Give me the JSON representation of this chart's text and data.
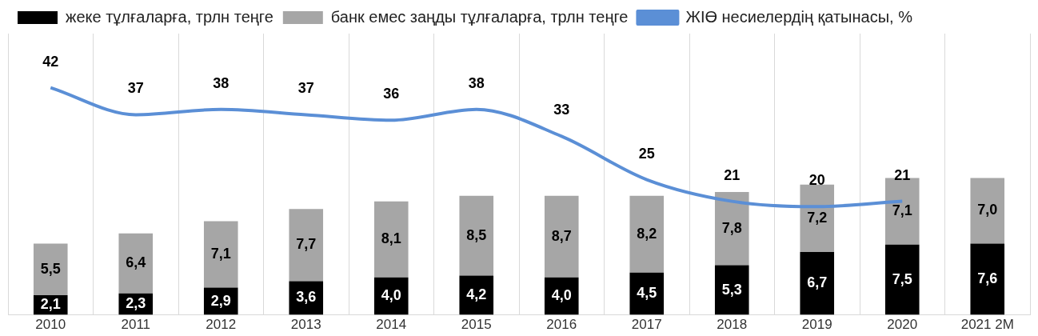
{
  "chart_data": {
    "type": "bar",
    "stacked": true,
    "categories": [
      "2010",
      "2011",
      "2012",
      "2013",
      "2014",
      "2015",
      "2016",
      "2017",
      "2018",
      "2019",
      "2020",
      "2021 2M"
    ],
    "series": [
      {
        "name": "жеке тұлғаларға, трлн теңге",
        "color": "#000000",
        "values": [
          2.1,
          2.3,
          2.9,
          3.6,
          4.0,
          4.2,
          4.0,
          4.5,
          5.3,
          6.7,
          7.5,
          7.6
        ],
        "value_labels": [
          "2,1",
          "2,3",
          "2,9",
          "3,6",
          "4,0",
          "4,2",
          "4,0",
          "4,5",
          "5,3",
          "6,7",
          "7,5",
          "7,6"
        ]
      },
      {
        "name": "банк емес заңды тұлғаларға, трлн теңге",
        "color": "#a6a6a6",
        "values": [
          5.5,
          6.4,
          7.1,
          7.7,
          8.1,
          8.5,
          8.7,
          8.2,
          7.8,
          7.2,
          7.1,
          7.0
        ],
        "value_labels": [
          "5,5",
          "6,4",
          "7,1",
          "7,7",
          "8,1",
          "8,5",
          "8,7",
          "8,2",
          "7,8",
          "7,2",
          "7,1",
          "7,0"
        ]
      },
      {
        "name": "ЖІӨ несиелердің қатынасы, %",
        "type": "line",
        "axis": "y2",
        "color": "#5b8fd6",
        "values": [
          42,
          37,
          38,
          37,
          36,
          38,
          33,
          25,
          21,
          20,
          21,
          null
        ],
        "value_labels": [
          "42",
          "37",
          "38",
          "37",
          "36",
          "38",
          "33",
          "25",
          "21",
          "20",
          "21",
          null
        ]
      }
    ],
    "ylim": [
      0,
      30
    ],
    "y2lim": [
      0,
      52
    ],
    "tick_labels": "x",
    "grid": "x",
    "legend": "top",
    "marker": "none"
  }
}
